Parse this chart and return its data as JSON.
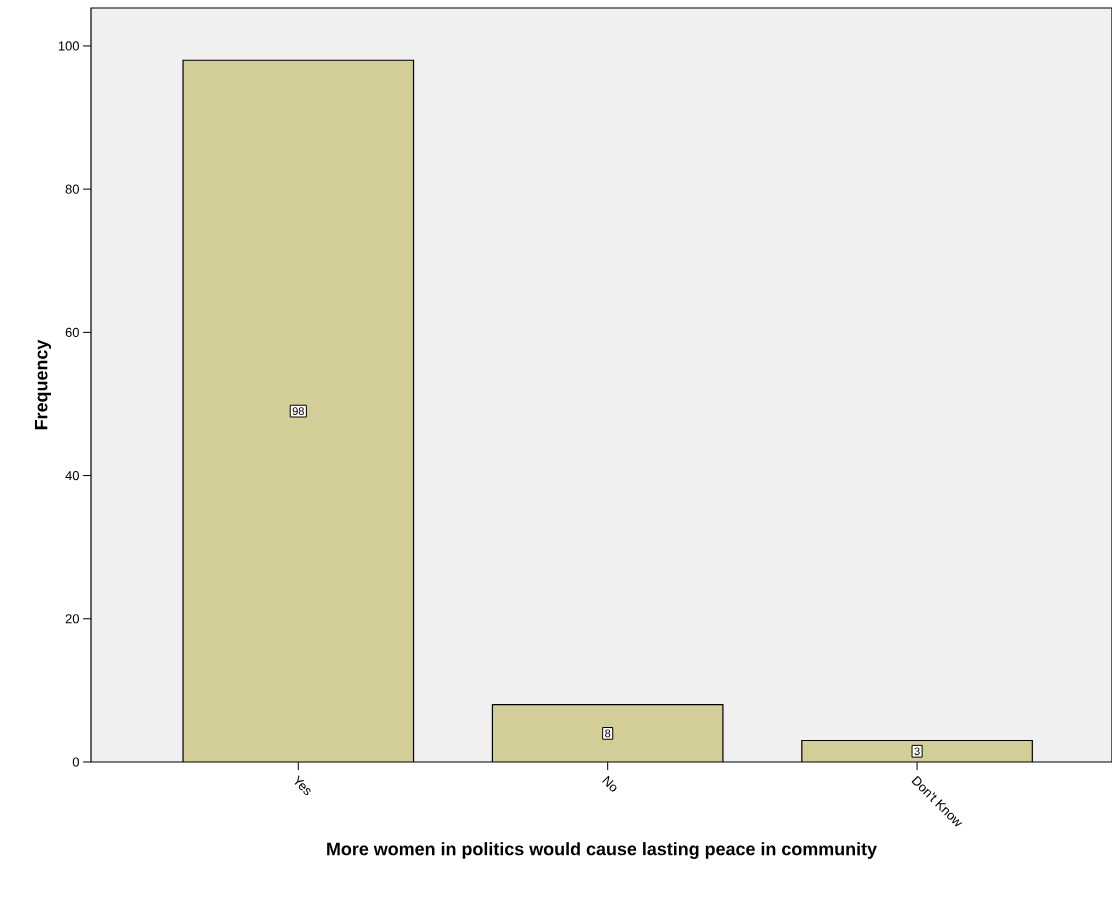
{
  "chart_data": {
    "type": "bar",
    "xlabel": "More women in politics would cause lasting peace in community",
    "ylabel": "Frequency",
    "categories": [
      "Yes",
      "No",
      "Don't Know"
    ],
    "values": [
      98,
      8,
      3
    ],
    "color": "#d3ce97",
    "ylim": [
      0,
      105.3
    ],
    "yticks": [
      0,
      20,
      40,
      60,
      80,
      100
    ],
    "data_labels": true
  }
}
